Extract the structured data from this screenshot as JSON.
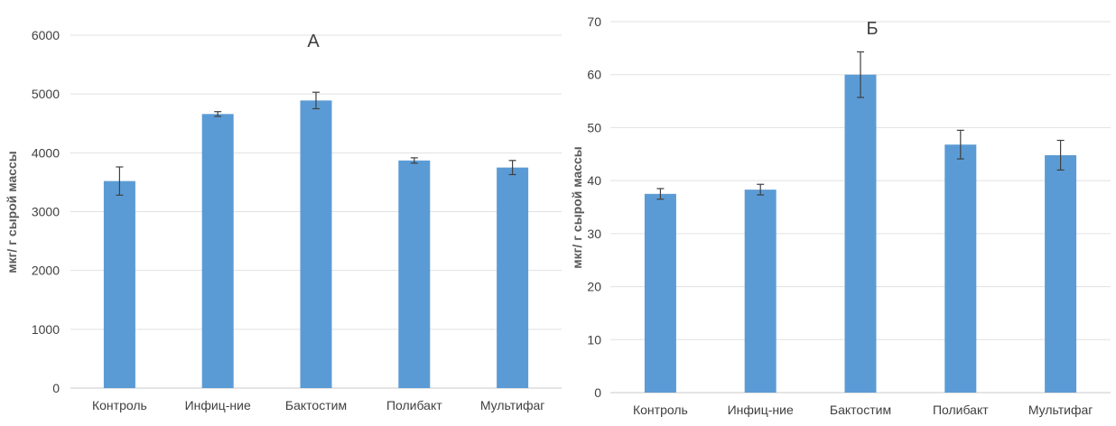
{
  "chart_data": [
    {
      "type": "bar",
      "title": "А",
      "ylabel": "мкг/ г сырой массы",
      "xlabel": "",
      "categories": [
        "Контроль",
        "Инфиц-ние",
        "Бактостим",
        "Полибакт",
        "Мультифаг"
      ],
      "values": [
        3520,
        4660,
        4890,
        3870,
        3750
      ],
      "errors": [
        240,
        40,
        140,
        45,
        120
      ],
      "ylim": [
        0,
        6000
      ],
      "yticks": [
        "0",
        "1000",
        "2000",
        "3000",
        "4000",
        "5000",
        "6000"
      ],
      "grid": true,
      "legend": "none",
      "bar_color": "#5b9bd5"
    },
    {
      "type": "bar",
      "title": "Б",
      "ylabel": "мкг/ г сырой массы",
      "xlabel": "",
      "categories": [
        "Контроль",
        "Инфиц-ние",
        "Бактостим",
        "Полибакт",
        "Мультифаг"
      ],
      "values": [
        37.5,
        38.3,
        60.0,
        46.8,
        44.8
      ],
      "errors": [
        1.0,
        1.0,
        4.3,
        2.7,
        2.8
      ],
      "ylim": [
        0,
        70
      ],
      "yticks": [
        "0",
        "10",
        "20",
        "30",
        "40",
        "50",
        "60",
        "70"
      ],
      "grid": true,
      "legend": "none",
      "bar_color": "#5b9bd5"
    }
  ]
}
